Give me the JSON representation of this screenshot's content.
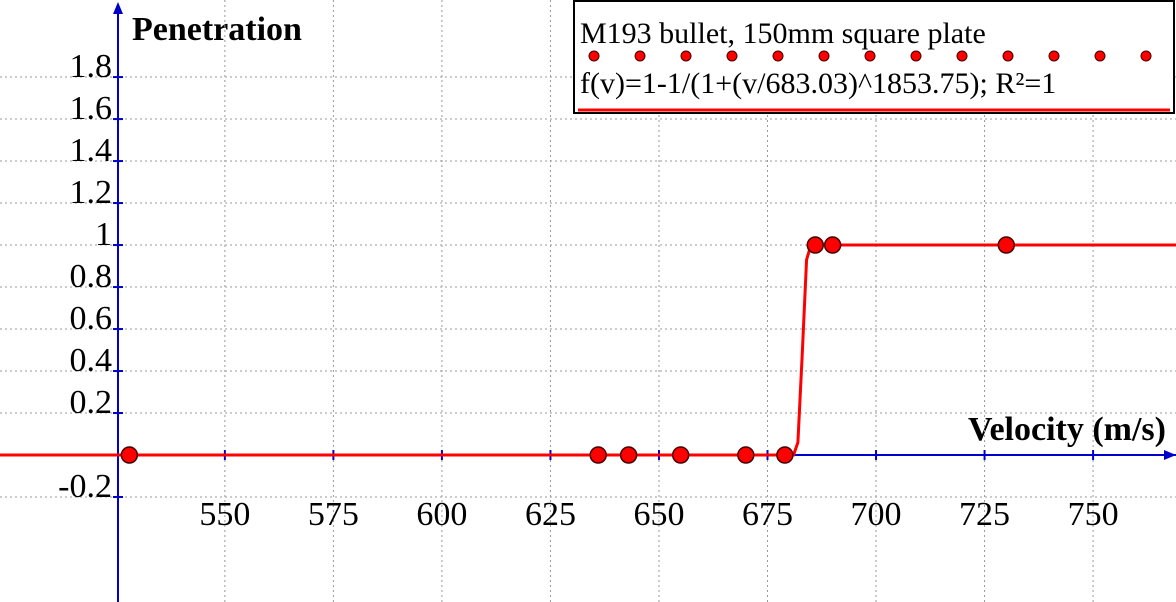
{
  "chart_data": {
    "type": "scatter",
    "x_label": "Velocity (m/s)",
    "y_label": "Penetration",
    "xlim": [
      498.2,
      769.1
    ],
    "ylim": [
      -0.7,
      2.167
    ],
    "xticks": [
      550,
      575,
      600,
      625,
      650,
      675,
      700,
      725,
      750
    ],
    "yticks": [
      -0.2,
      0.2,
      0.4,
      0.6,
      0.8,
      1,
      1.2,
      1.4,
      1.6,
      1.8
    ],
    "grid": true,
    "legend": "upper right",
    "series": [
      {
        "name": "M193 bullet, 150mm square plate",
        "color": "#ff0000",
        "kind": "points",
        "x": [
          528,
          636,
          643,
          655,
          670,
          679,
          686,
          690,
          730
        ],
        "values": [
          0,
          0,
          0,
          0,
          0,
          0,
          1,
          1,
          1
        ]
      },
      {
        "name": "f(v)=1-1/(1+(v/683.03)^1853.75); R²=1",
        "color": "#ff0000",
        "kind": "line",
        "x": [
          498.2,
          680,
          681,
          682,
          683,
          684,
          685,
          686,
          769.1
        ],
        "values": [
          0,
          0,
          0,
          0.06,
          0.48,
          0.93,
          1,
          1,
          1
        ]
      }
    ]
  }
}
